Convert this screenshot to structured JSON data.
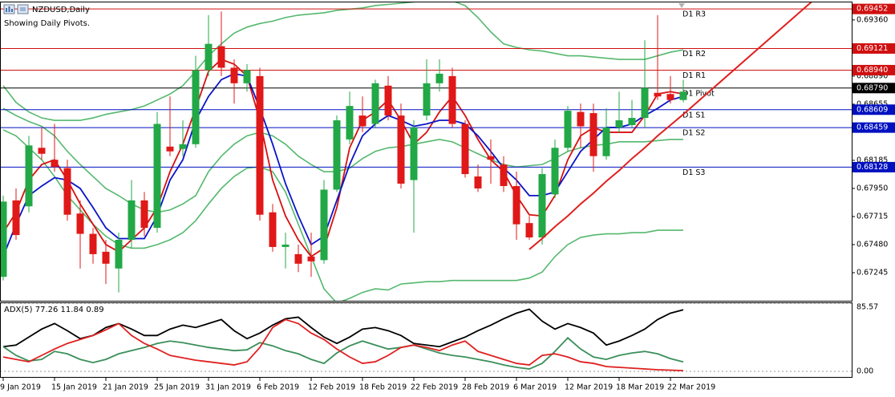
{
  "chart_data": [
    {
      "type": "candlestick",
      "title": "NZDUSD,Daily",
      "subtitle": "Showing Daily Pivots.",
      "categories": [
        "9 Jan 2019",
        null,
        null,
        null,
        "15 Jan 2019",
        null,
        null,
        null,
        "21 Jan 2019",
        null,
        null,
        null,
        "25 Jan 2019",
        null,
        null,
        null,
        "31 Jan 2019",
        null,
        null,
        null,
        "6 Feb 2019",
        null,
        null,
        null,
        "12 Feb 2019",
        null,
        null,
        null,
        "18 Feb 2019",
        null,
        null,
        null,
        "22 Feb 2019",
        null,
        null,
        null,
        "28 Feb 2019",
        null,
        null,
        null,
        "6 Mar 2019",
        null,
        null,
        null,
        "12 Mar 2019",
        null,
        null,
        null,
        "18 Mar 2019",
        null,
        null,
        null,
        "22 Mar 2019",
        null
      ],
      "open": [
        0.6721,
        0.6785,
        0.678,
        0.6829,
        0.6819,
        0.6812,
        0.6774,
        0.6757,
        0.6742,
        0.6728,
        0.6752,
        0.6785,
        0.6762,
        0.683,
        0.6828,
        0.6832,
        0.6894,
        0.6914,
        0.6896,
        0.6883,
        0.6889,
        0.6775,
        0.6746,
        0.674,
        0.6738,
        0.6735,
        0.6794,
        0.6836,
        0.6856,
        0.6849,
        0.6881,
        0.6856,
        0.6802,
        0.6856,
        0.6883,
        0.6889,
        0.6849,
        0.6805,
        0.6822,
        0.6815,
        0.6797,
        0.6766,
        0.6754,
        0.679,
        0.6829,
        0.6859,
        0.6858,
        0.6822,
        0.6846,
        0.6848,
        0.6854,
        0.6875,
        0.6874,
        0.6869
      ],
      "high": [
        0.6789,
        0.6795,
        0.6839,
        0.6846,
        0.6849,
        0.6819,
        0.6785,
        0.6762,
        0.6752,
        0.6758,
        0.6802,
        0.6792,
        0.6859,
        0.6872,
        0.6852,
        0.6906,
        0.694,
        0.6943,
        0.6903,
        0.6899,
        0.6896,
        0.6782,
        0.6758,
        0.6748,
        0.6758,
        0.6802,
        0.6856,
        0.6876,
        0.6872,
        0.6886,
        0.6889,
        0.6866,
        0.6852,
        0.6903,
        0.6903,
        0.6896,
        0.6852,
        0.6815,
        0.6836,
        0.6822,
        0.6809,
        0.6772,
        0.6812,
        0.6836,
        0.6864,
        0.6866,
        0.6866,
        0.6862,
        0.6876,
        0.6869,
        0.6919,
        0.694,
        0.6889,
        0.6886
      ],
      "low": [
        0.6718,
        0.6752,
        0.6775,
        0.6819,
        0.6809,
        0.6768,
        0.6728,
        0.6732,
        0.6715,
        0.6708,
        0.6745,
        0.6755,
        0.6758,
        0.6822,
        0.6822,
        0.6829,
        0.6889,
        0.6889,
        0.6866,
        0.6876,
        0.6768,
        0.6742,
        0.6728,
        0.6725,
        0.6721,
        0.6732,
        0.6792,
        0.6832,
        0.6842,
        0.6846,
        0.6852,
        0.6795,
        0.6758,
        0.6852,
        0.6876,
        0.6846,
        0.6804,
        0.6792,
        0.6799,
        0.6792,
        0.6752,
        0.6752,
        0.6748,
        0.6787,
        0.6826,
        0.6829,
        0.6809,
        0.6819,
        0.6842,
        0.6846,
        0.6846,
        0.6869,
        0.6866,
        0.6867
      ],
      "close": [
        0.6784,
        0.6756,
        0.6831,
        0.6824,
        0.6813,
        0.6773,
        0.6757,
        0.674,
        0.6732,
        0.6752,
        0.6785,
        0.6762,
        0.6849,
        0.6826,
        0.6832,
        0.6894,
        0.6916,
        0.6896,
        0.6883,
        0.6894,
        0.6773,
        0.6746,
        0.6748,
        0.6732,
        0.6734,
        0.6794,
        0.6852,
        0.6864,
        0.6847,
        0.6883,
        0.6856,
        0.6799,
        0.6846,
        0.6883,
        0.6891,
        0.6849,
        0.6807,
        0.6795,
        0.6819,
        0.6797,
        0.6765,
        0.6754,
        0.6807,
        0.6829,
        0.686,
        0.6847,
        0.6822,
        0.6846,
        0.6852,
        0.6854,
        0.6879,
        0.6872,
        0.6869,
        0.6876
      ],
      "up_color": "#22a846",
      "down_color": "#e01818",
      "overlays": [
        {
          "color": "#55b86e",
          "values": [
            0.6881,
            0.6867,
            0.6859,
            0.6854,
            0.6852,
            0.6852,
            0.6852,
            0.6854,
            0.6857,
            0.6859,
            0.6861,
            0.6864,
            0.6869,
            0.6874,
            0.6881,
            0.6893,
            0.6906,
            0.6916,
            0.6925,
            0.693,
            0.6933,
            0.6935,
            0.6938,
            0.694,
            0.6941,
            0.6942,
            0.6944,
            0.6945,
            0.6946,
            0.6948,
            0.6949,
            0.695,
            0.6951,
            0.6953,
            0.6952,
            0.6952,
            0.6948,
            0.6938,
            0.6926,
            0.6916,
            0.6913,
            0.6911,
            0.691,
            0.6908,
            0.6906,
            0.6906,
            0.6905,
            0.6904,
            0.6903,
            0.6903,
            0.6903,
            0.6906,
            0.6909,
            0.6911
          ]
        },
        {
          "color": "#55b86e",
          "values": [
            0.6862,
            0.6856,
            0.6851,
            0.6847,
            0.6839,
            0.6826,
            0.6815,
            0.6805,
            0.6795,
            0.6789,
            0.6782,
            0.6777,
            0.6775,
            0.6777,
            0.6782,
            0.6789,
            0.6809,
            0.6822,
            0.6832,
            0.6839,
            0.6842,
            0.6839,
            0.6832,
            0.6822,
            0.6815,
            0.6809,
            0.6809,
            0.6812,
            0.682,
            0.6826,
            0.6829,
            0.683,
            0.6832,
            0.6834,
            0.6836,
            0.6834,
            0.6829,
            0.6824,
            0.6819,
            0.6815,
            0.6813,
            0.6814,
            0.6815,
            0.682,
            0.6826,
            0.6829,
            0.6831,
            0.6832,
            0.6834,
            0.6834,
            0.6834,
            0.6835,
            0.6836,
            0.6836
          ]
        },
        {
          "color": "#55b86e",
          "values": [
            0.6844,
            0.6839,
            0.6829,
            0.6819,
            0.6805,
            0.6789,
            0.6777,
            0.6765,
            0.6755,
            0.6748,
            0.6745,
            0.6745,
            0.6748,
            0.6752,
            0.6758,
            0.6768,
            0.6782,
            0.6795,
            0.6805,
            0.6812,
            0.6813,
            0.6809,
            0.6792,
            0.6765,
            0.6738,
            0.6711,
            0.6699,
            0.6703,
            0.6708,
            0.6711,
            0.671,
            0.6715,
            0.6716,
            0.6717,
            0.6717,
            0.6718,
            0.6718,
            0.6718,
            0.6718,
            0.6718,
            0.6718,
            0.672,
            0.6725,
            0.6738,
            0.6748,
            0.6754,
            0.6756,
            0.6757,
            0.6757,
            0.6758,
            0.6758,
            0.676,
            0.676,
            0.676
          ]
        },
        {
          "color": "#d81010",
          "values": [
            0.6758,
            0.6775,
            0.6802,
            0.6815,
            0.6819,
            0.6802,
            0.6782,
            0.6765,
            0.6748,
            0.6742,
            0.6752,
            0.6762,
            0.6779,
            0.6809,
            0.6832,
            0.6862,
            0.6893,
            0.6903,
            0.6899,
            0.6889,
            0.6852,
            0.6802,
            0.6772,
            0.6752,
            0.6738,
            0.6745,
            0.6779,
            0.6829,
            0.6852,
            0.6859,
            0.6869,
            0.6852,
            0.6832,
            0.6842,
            0.6859,
            0.6872,
            0.6856,
            0.6836,
            0.6819,
            0.6809,
            0.6789,
            0.6773,
            0.6772,
            0.6789,
            0.6819,
            0.6839,
            0.6846,
            0.6842,
            0.6842,
            0.6842,
            0.6856,
            0.6874,
            0.6876,
            0.6874
          ]
        },
        {
          "color": "#0a14c8",
          "values": [
            0.6738,
            0.6765,
            0.6789,
            0.6797,
            0.6804,
            0.6802,
            0.6795,
            0.6779,
            0.6762,
            0.6753,
            0.6753,
            0.6753,
            0.6772,
            0.6802,
            0.6819,
            0.6852,
            0.6872,
            0.6886,
            0.6891,
            0.6889,
            0.6862,
            0.6832,
            0.6799,
            0.6772,
            0.6748,
            0.6755,
            0.6785,
            0.6815,
            0.6839,
            0.6849,
            0.6856,
            0.6852,
            0.6847,
            0.6849,
            0.6852,
            0.6852,
            0.6849,
            0.6839,
            0.6826,
            0.6812,
            0.6802,
            0.6789,
            0.6789,
            0.6792,
            0.6809,
            0.6826,
            0.6836,
            0.6846,
            0.6846,
            0.6849,
            0.6856,
            0.6862,
            0.6869,
            0.6872
          ]
        }
      ],
      "trendline": {
        "color": "#e02020",
        "values": [
          null,
          null,
          null,
          null,
          null,
          null,
          null,
          null,
          null,
          null,
          null,
          null,
          null,
          null,
          null,
          null,
          null,
          null,
          null,
          null,
          null,
          null,
          null,
          null,
          null,
          null,
          null,
          null,
          null,
          null,
          null,
          null,
          null,
          null,
          null,
          null,
          null,
          null,
          null,
          null,
          null,
          0.6744,
          0.6753,
          0.6763,
          0.6772,
          0.6782,
          0.6791,
          0.6801,
          0.681,
          0.682,
          0.6829,
          0.6839,
          0.6848,
          0.6857
        ]
      },
      "levels": [
        {
          "name": "D1 R3",
          "value": 0.69452,
          "value_label": "0.69452",
          "color": "#d01010"
        },
        {
          "name": "D1 R2",
          "value": 0.69121,
          "value_label": "0.69121",
          "color": "#d01010"
        },
        {
          "name": "D1 R1",
          "value": 0.6894,
          "value_label": "0.68940",
          "color": "#d01010"
        },
        {
          "name": "D1 Pivot",
          "value": 0.6879,
          "value_label": "0.68790",
          "color": "#000000"
        },
        {
          "name": "D1 S1",
          "value": 0.68609,
          "value_label": "0.68609",
          "color": "#0010c0"
        },
        {
          "name": "D1 S2",
          "value": 0.68459,
          "value_label": "0.68459",
          "color": "#0010c0"
        },
        {
          "name": "D1 S3",
          "value": 0.68128,
          "value_label": "0.68128",
          "color": "#0010c0"
        }
      ],
      "ylim": [
        0.6701,
        0.695
      ],
      "yticks": [
        {
          "value": 0.6936,
          "label": "0.69360"
        },
        {
          "value": 0.6889,
          "label": "0.68890"
        },
        0.68655,
        0.68185,
        {
          "value": 0.6795,
          "label": "0.67950"
        },
        0.67715,
        {
          "value": 0.6748,
          "label": "0.67480"
        },
        0.67245
      ],
      "grid": false
    },
    {
      "type": "line",
      "title": "ADX(5) 77.26 11.84 0.89",
      "series": [
        {
          "color": "#000000",
          "values": [
            31,
            33,
            43,
            53,
            60,
            51,
            41,
            45,
            55,
            60,
            53,
            45,
            45,
            53,
            58,
            55,
            60,
            65,
            51,
            41,
            48,
            58,
            66,
            68,
            55,
            43,
            35,
            43,
            53,
            55,
            51,
            45,
            35,
            33,
            31,
            37,
            43,
            51,
            58,
            66,
            73,
            78,
            63,
            53,
            60,
            55,
            48,
            33,
            38,
            45,
            53,
            65,
            73,
            77.26
          ]
        },
        {
          "color": "#3a8f5a",
          "values": [
            31,
            20,
            13,
            15,
            25,
            22,
            15,
            11,
            15,
            22,
            26,
            30,
            35,
            38,
            36,
            33,
            30,
            28,
            26,
            27,
            36,
            32,
            26,
            22,
            15,
            10,
            23,
            32,
            38,
            33,
            28,
            30,
            33,
            28,
            23,
            20,
            18,
            15,
            12,
            8,
            5,
            3,
            10,
            25,
            42,
            28,
            18,
            15,
            20,
            23,
            25,
            22,
            16,
            11.84
          ]
        },
        {
          "color": "#e02020",
          "values": [
            18,
            15,
            12,
            20,
            28,
            35,
            40,
            45,
            52,
            60,
            45,
            35,
            28,
            20,
            17,
            14,
            12,
            10,
            8,
            12,
            30,
            55,
            65,
            60,
            48,
            40,
            28,
            18,
            10,
            12,
            20,
            30,
            33,
            30,
            26,
            33,
            38,
            25,
            20,
            15,
            10,
            8,
            20,
            22,
            18,
            12,
            10,
            6,
            5,
            4,
            3,
            2,
            1.5,
            0.89
          ]
        }
      ],
      "ylim": [
        0,
        85.57
      ],
      "yticks": [
        85.57,
        {
          "value": 0,
          "label": "0.00"
        }
      ]
    }
  ]
}
